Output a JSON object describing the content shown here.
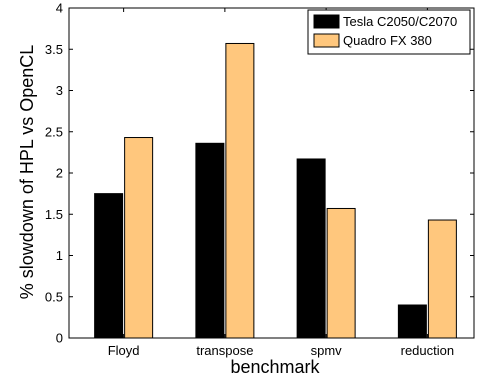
{
  "chart_data": {
    "type": "bar",
    "title": "",
    "xlabel": "benchmark",
    "ylabel": "% slowdown of HPL vs OpenCL",
    "categories": [
      "Floyd",
      "transpose",
      "spmv",
      "reduction"
    ],
    "series": [
      {
        "name": "Tesla C2050/C2070",
        "color": "#000000",
        "values": [
          1.75,
          2.36,
          2.17,
          0.4
        ]
      },
      {
        "name": "Quadro FX 380",
        "color": "#ffc77d",
        "values": [
          2.43,
          3.57,
          1.57,
          1.43
        ]
      }
    ],
    "ylim": [
      0,
      4
    ],
    "yticks": [
      "0",
      "0.5",
      "1",
      "1.5",
      "2",
      "2.5",
      "3",
      "3.5",
      "4"
    ],
    "grid": false,
    "legend_position": "top-right"
  }
}
